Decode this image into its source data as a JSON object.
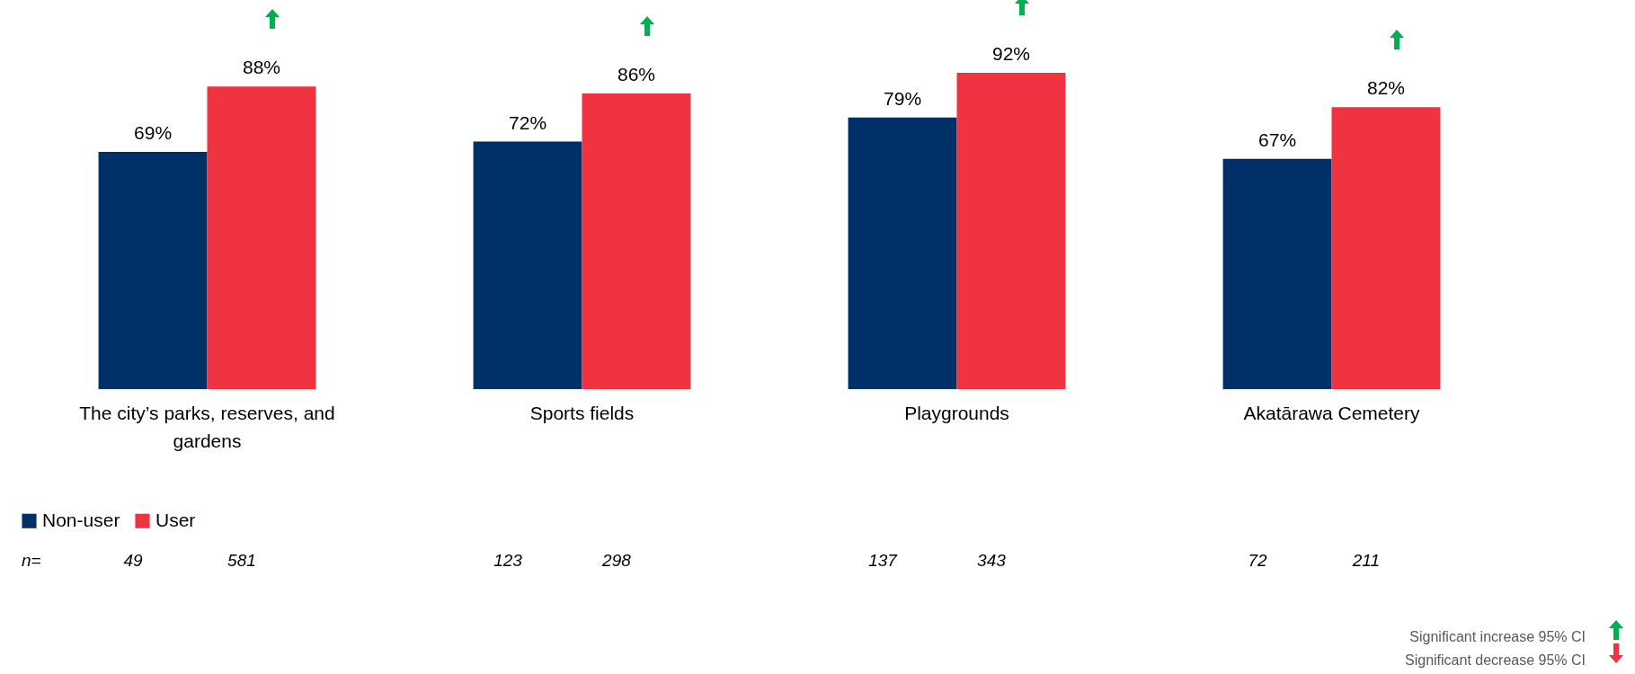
{
  "chart_data": {
    "type": "bar",
    "categories": [
      "The city’s parks, reserves, and gardens",
      "Sports fields",
      "Playgrounds",
      "Akatārawa Cemetery"
    ],
    "series": [
      {
        "name": "Non-user",
        "color": "#003068",
        "values": [
          69,
          72,
          79,
          67
        ],
        "value_labels": [
          "69%",
          "72%",
          "79%",
          "67%"
        ]
      },
      {
        "name": "User",
        "color": "#ef3340",
        "values": [
          88,
          86,
          92,
          82
        ],
        "value_labels": [
          "88%",
          "86%",
          "92%",
          "82%"
        ]
      }
    ],
    "legend": "bottom",
    "annotations": [
      "n=",
      "49",
      "581",
      "123",
      "298",
      "137",
      "343",
      "72",
      "211",
      "Significant increase 95% CI",
      "Significant decrease 95% CI"
    ]
  }
}
